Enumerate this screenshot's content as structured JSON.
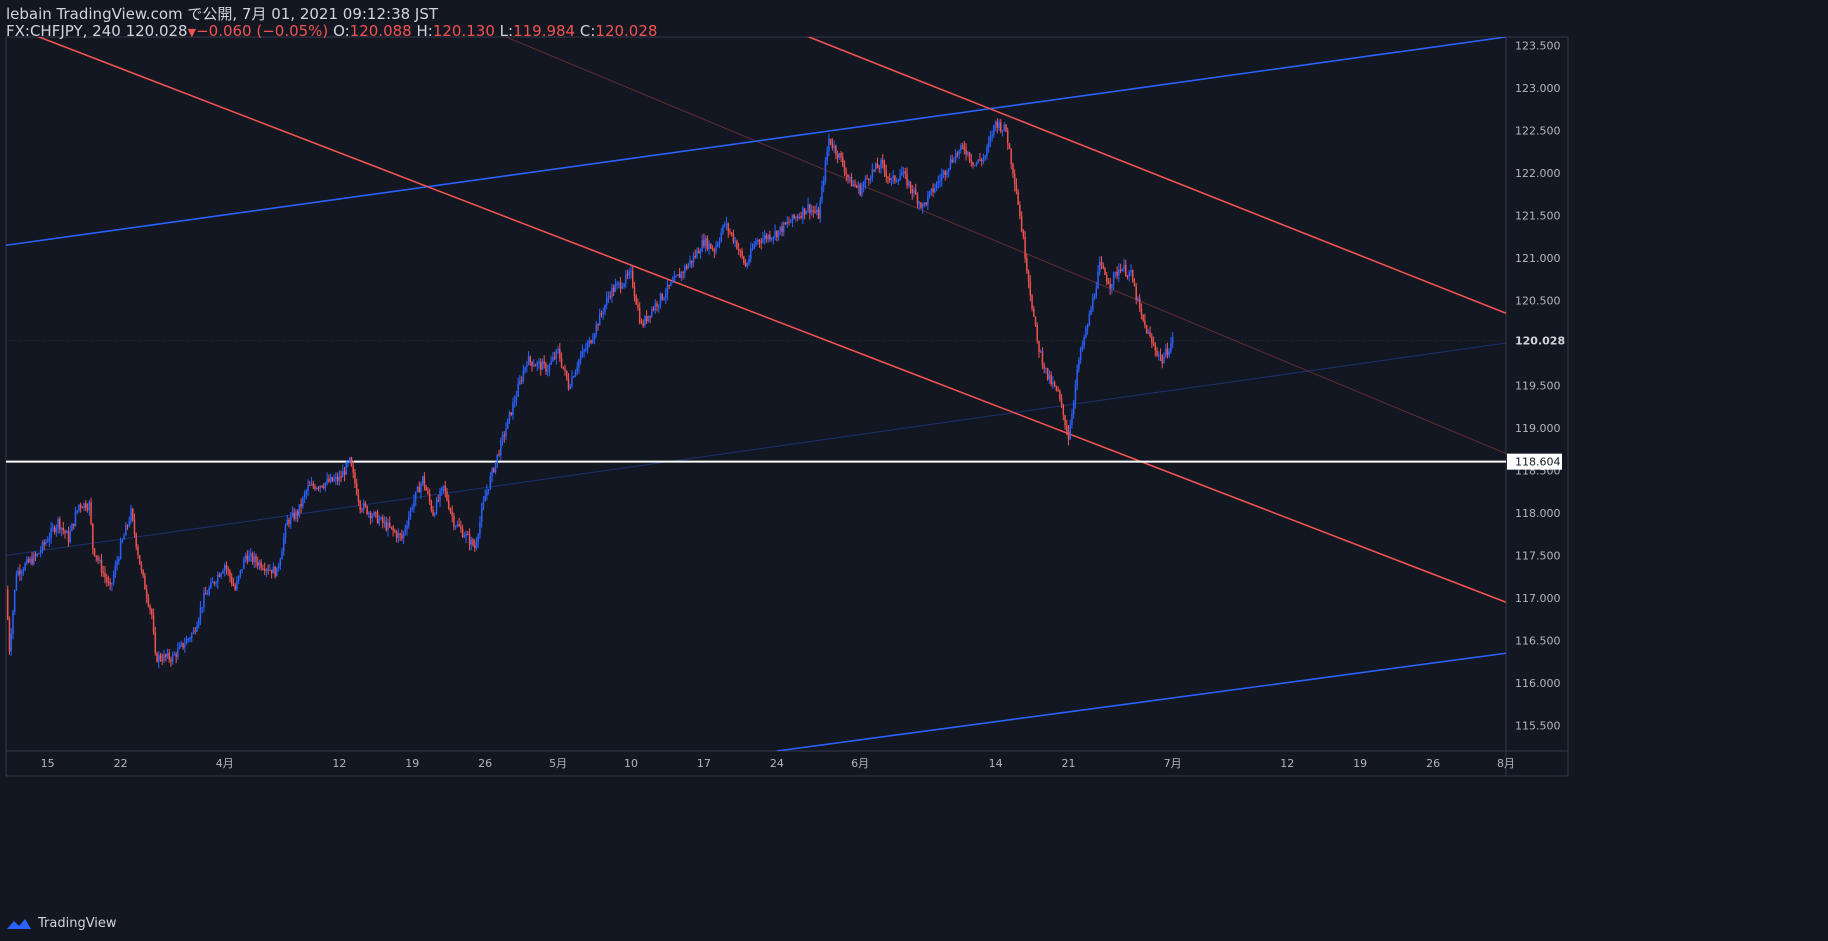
{
  "header": {
    "line1": "lebain TradingView.com で公開, 7月 01, 2021 09:12:38 JST",
    "symbol": "FX:CHFJPY, 240 120.028",
    "change": "−0.060 (−0.05%)",
    "o_label": "O:",
    "o_value": "120.088",
    "h_label": "H:",
    "h_value": "120.130",
    "l_label": "L:",
    "l_value": "119.984",
    "c_label": "C:",
    "c_value": "120.028"
  },
  "brand": "TradingView",
  "colors": {
    "background": "#131722",
    "up": "#2962ff",
    "down": "#ef5350",
    "axis_text": "#b2b5be",
    "support_line": "#ffffff"
  },
  "price_axis": {
    "ticks": [
      "115.500",
      "116.000",
      "116.500",
      "117.000",
      "117.500",
      "118.000",
      "118.500",
      "119.000",
      "119.500",
      "120.000",
      "120.500",
      "121.000",
      "121.500",
      "122.000",
      "122.500",
      "123.000",
      "123.500"
    ],
    "current_price_label": "120.028",
    "support_label": "118.604"
  },
  "chart_data": {
    "type": "candlestick",
    "symbol": "FX:CHFJPY",
    "interval": "240",
    "y_range": [
      115.2,
      123.6
    ],
    "x_range": [
      "2021-03-11",
      "2021-08-02"
    ],
    "x_ticks": [
      {
        "date": "2021-03-15",
        "label": "15"
      },
      {
        "date": "2021-03-22",
        "label": "22"
      },
      {
        "date": "2021-04-01",
        "label": "4月"
      },
      {
        "date": "2021-04-12",
        "label": "12"
      },
      {
        "date": "2021-04-19",
        "label": "19"
      },
      {
        "date": "2021-04-26",
        "label": "26"
      },
      {
        "date": "2021-05-03",
        "label": "5月"
      },
      {
        "date": "2021-05-10",
        "label": "10"
      },
      {
        "date": "2021-05-17",
        "label": "17"
      },
      {
        "date": "2021-05-24",
        "label": "24"
      },
      {
        "date": "2021-06-01",
        "label": "6月"
      },
      {
        "date": "2021-06-14",
        "label": "14"
      },
      {
        "date": "2021-06-21",
        "label": "21"
      },
      {
        "date": "2021-07-01",
        "label": "7月"
      },
      {
        "date": "2021-07-12",
        "label": "12"
      },
      {
        "date": "2021-07-19",
        "label": "19"
      },
      {
        "date": "2021-07-26",
        "label": "26"
      },
      {
        "date": "2021-08-02",
        "label": "8月"
      }
    ],
    "price_path": [
      [
        "2021-03-11",
        117.1
      ],
      [
        "2021-03-11",
        116.4
      ],
      [
        "2021-03-12",
        117.3
      ],
      [
        "2021-03-14",
        117.5
      ],
      [
        "2021-03-16",
        117.9
      ],
      [
        "2021-03-17",
        117.7
      ],
      [
        "2021-03-18",
        118.1
      ],
      [
        "2021-03-19",
        118.1
      ],
      [
        "2021-03-19",
        117.6
      ],
      [
        "2021-03-21",
        117.1
      ],
      [
        "2021-03-22",
        117.6
      ],
      [
        "2021-03-23",
        118.0
      ],
      [
        "2021-03-24",
        117.3
      ],
      [
        "2021-03-25",
        116.8
      ],
      [
        "2021-03-25",
        116.3
      ],
      [
        "2021-03-27",
        116.3
      ],
      [
        "2021-03-29",
        116.6
      ],
      [
        "2021-03-30",
        117.0
      ],
      [
        "2021-04-01",
        117.4
      ],
      [
        "2021-04-02",
        117.1
      ],
      [
        "2021-04-03",
        117.5
      ],
      [
        "2021-04-06",
        117.3
      ],
      [
        "2021-04-07",
        117.9
      ],
      [
        "2021-04-08",
        118.0
      ],
      [
        "2021-04-09",
        118.3
      ],
      [
        "2021-04-12",
        118.4
      ],
      [
        "2021-04-13",
        118.6
      ],
      [
        "2021-04-14",
        118.1
      ],
      [
        "2021-04-16",
        117.9
      ],
      [
        "2021-04-18",
        117.7
      ],
      [
        "2021-04-19",
        118.1
      ],
      [
        "2021-04-20",
        118.4
      ],
      [
        "2021-04-21",
        118.0
      ],
      [
        "2021-04-22",
        118.3
      ],
      [
        "2021-04-23",
        117.9
      ],
      [
        "2021-04-25",
        117.6
      ],
      [
        "2021-04-26",
        118.2
      ],
      [
        "2021-04-27",
        118.6
      ],
      [
        "2021-04-28",
        119.0
      ],
      [
        "2021-04-30",
        119.8
      ],
      [
        "2021-05-02",
        119.7
      ],
      [
        "2021-05-03",
        119.9
      ],
      [
        "2021-05-04",
        119.5
      ],
      [
        "2021-05-05",
        119.8
      ],
      [
        "2021-05-06",
        120.0
      ],
      [
        "2021-05-07",
        120.3
      ],
      [
        "2021-05-08",
        120.6
      ],
      [
        "2021-05-10",
        120.8
      ],
      [
        "2021-05-11",
        120.2
      ],
      [
        "2021-05-12",
        120.4
      ],
      [
        "2021-05-14",
        120.7
      ],
      [
        "2021-05-16",
        121.0
      ],
      [
        "2021-05-17",
        121.2
      ],
      [
        "2021-05-18",
        121.1
      ],
      [
        "2021-05-19",
        121.4
      ],
      [
        "2021-05-20",
        121.2
      ],
      [
        "2021-05-21",
        120.9
      ],
      [
        "2021-05-22",
        121.2
      ],
      [
        "2021-05-24",
        121.3
      ],
      [
        "2021-05-25",
        121.4
      ],
      [
        "2021-05-27",
        121.6
      ],
      [
        "2021-05-28",
        121.5
      ],
      [
        "2021-05-29",
        122.4
      ],
      [
        "2021-05-30",
        122.2
      ],
      [
        "2021-05-31",
        121.9
      ],
      [
        "2021-06-01",
        121.8
      ],
      [
        "2021-06-02",
        122.0
      ],
      [
        "2021-06-03",
        122.1
      ],
      [
        "2021-06-04",
        121.9
      ],
      [
        "2021-06-05",
        122.0
      ],
      [
        "2021-06-06",
        121.8
      ],
      [
        "2021-06-07",
        121.6
      ],
      [
        "2021-06-08",
        121.8
      ],
      [
        "2021-06-09",
        122.0
      ],
      [
        "2021-06-10",
        122.2
      ],
      [
        "2021-06-11",
        122.3
      ],
      [
        "2021-06-12",
        122.1
      ],
      [
        "2021-06-13",
        122.2
      ],
      [
        "2021-06-14",
        122.6
      ],
      [
        "2021-06-15",
        122.5
      ],
      [
        "2021-06-16",
        121.8
      ],
      [
        "2021-06-17",
        120.9
      ],
      [
        "2021-06-18",
        120.0
      ],
      [
        "2021-06-19",
        119.6
      ],
      [
        "2021-06-20",
        119.4
      ],
      [
        "2021-06-21",
        118.9
      ],
      [
        "2021-06-22",
        119.8
      ],
      [
        "2021-06-23",
        120.3
      ],
      [
        "2021-06-24",
        120.9
      ],
      [
        "2021-06-25",
        120.7
      ],
      [
        "2021-06-26",
        120.9
      ],
      [
        "2021-06-27",
        120.8
      ],
      [
        "2021-06-28",
        120.3
      ],
      [
        "2021-06-29",
        120.0
      ],
      [
        "2021-06-30",
        119.8
      ],
      [
        "2021-07-01",
        120.03
      ]
    ],
    "last_price": 120.028,
    "horizontal_line": 118.604,
    "trendlines": [
      {
        "color": "#2962ff",
        "from": [
          "2021-03-11",
          121.15
        ],
        "to": [
          "2021-08-02",
          123.6
        ]
      },
      {
        "color": "#2962ff",
        "from": [
          "2021-05-24",
          115.2
        ],
        "to": [
          "2021-08-02",
          116.35
        ]
      },
      {
        "color": "#ef5350",
        "from": [
          "2021-03-11",
          123.75
        ],
        "to": [
          "2021-08-02",
          116.95
        ]
      },
      {
        "color": "#ef5350",
        "from": [
          "2021-05-24",
          123.75
        ],
        "to": [
          "2021-08-02",
          120.35
        ]
      }
    ],
    "grid": false
  }
}
